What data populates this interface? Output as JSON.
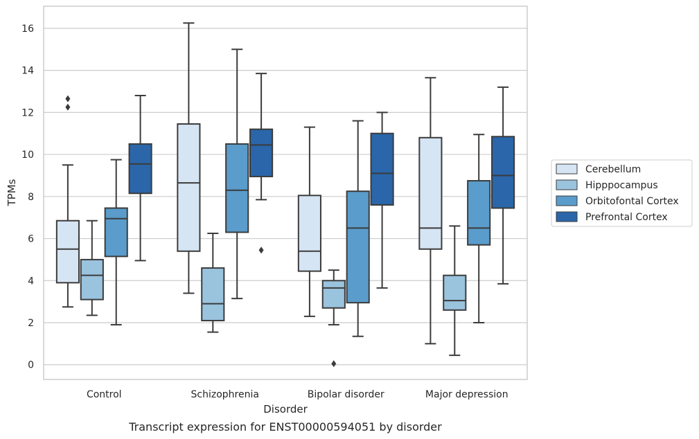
{
  "chart_data": {
    "type": "box",
    "title": "Transcript expression for ENST00000594051 by disorder",
    "xlabel": "Disorder",
    "ylabel": "TPMs",
    "ylim": [
      -0.7,
      17.05
    ],
    "yticks": [
      0,
      2,
      4,
      6,
      8,
      10,
      12,
      14,
      16
    ],
    "grid": "horizontal",
    "legend_position": "right",
    "categories": [
      "Control",
      "Schizophrenia",
      "Bipolar disorder",
      "Major depression"
    ],
    "series": [
      {
        "name": "Cerebellum",
        "color": "#d6e5f4",
        "boxes": [
          {
            "whislo": 2.75,
            "q1": 3.9,
            "med": 5.5,
            "q3": 6.85,
            "whishi": 9.5,
            "fliers": [
              12.25,
              12.65
            ]
          },
          {
            "whislo": 3.4,
            "q1": 5.4,
            "med": 8.65,
            "q3": 11.45,
            "whishi": 16.25,
            "fliers": []
          },
          {
            "whislo": 2.3,
            "q1": 4.45,
            "med": 5.4,
            "q3": 8.05,
            "whishi": 11.3,
            "fliers": []
          },
          {
            "whislo": 1.0,
            "q1": 5.5,
            "med": 6.5,
            "q3": 10.8,
            "whishi": 13.65,
            "fliers": []
          }
        ]
      },
      {
        "name": "Hipppocampus",
        "color": "#9ac3de",
        "boxes": [
          {
            "whislo": 2.35,
            "q1": 3.1,
            "med": 4.25,
            "q3": 5.0,
            "whishi": 6.85,
            "fliers": []
          },
          {
            "whislo": 1.55,
            "q1": 2.1,
            "med": 2.9,
            "q3": 4.6,
            "whishi": 6.25,
            "fliers": []
          },
          {
            "whislo": 1.9,
            "q1": 2.7,
            "med": 3.65,
            "q3": 4.0,
            "whishi": 4.5,
            "fliers": [
              0.05
            ]
          },
          {
            "whislo": 0.45,
            "q1": 2.6,
            "med": 3.05,
            "q3": 4.25,
            "whishi": 6.6,
            "fliers": []
          }
        ]
      },
      {
        "name": "Orbitofontal Cortex",
        "color": "#5a9ccb",
        "boxes": [
          {
            "whislo": 1.9,
            "q1": 5.15,
            "med": 6.95,
            "q3": 7.45,
            "whishi": 9.75,
            "fliers": []
          },
          {
            "whislo": 3.15,
            "q1": 6.3,
            "med": 8.3,
            "q3": 10.5,
            "whishi": 15.0,
            "fliers": []
          },
          {
            "whislo": 1.35,
            "q1": 2.95,
            "med": 6.5,
            "q3": 8.25,
            "whishi": 11.6,
            "fliers": []
          },
          {
            "whislo": 2.0,
            "q1": 5.7,
            "med": 6.5,
            "q3": 8.75,
            "whishi": 10.95,
            "fliers": []
          }
        ]
      },
      {
        "name": "Prefrontal Cortex",
        "color": "#2a66a9",
        "boxes": [
          {
            "whislo": 4.95,
            "q1": 8.15,
            "med": 9.55,
            "q3": 10.5,
            "whishi": 12.8,
            "fliers": []
          },
          {
            "whislo": 7.85,
            "q1": 8.95,
            "med": 10.45,
            "q3": 11.2,
            "whishi": 13.85,
            "fliers": [
              5.45
            ]
          },
          {
            "whislo": 3.65,
            "q1": 7.6,
            "med": 9.1,
            "q3": 11.0,
            "whishi": 12.0,
            "fliers": []
          },
          {
            "whislo": 3.85,
            "q1": 7.45,
            "med": 9.0,
            "q3": 10.85,
            "whishi": 13.2,
            "fliers": []
          }
        ]
      }
    ]
  }
}
